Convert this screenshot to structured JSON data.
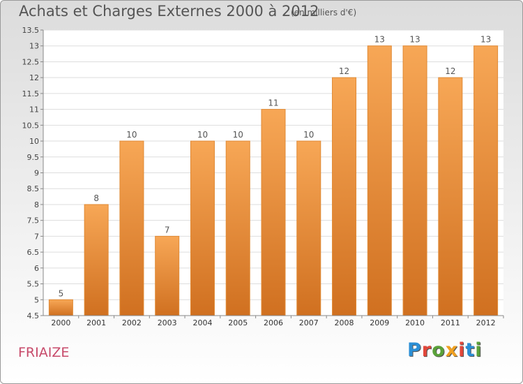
{
  "header": {
    "title": "Achats et Charges Externes 2000 à 2012",
    "unit": "(en milliers d'€)"
  },
  "footer": {
    "commune": "FRIAIZE",
    "logo": "Proxiti"
  },
  "colors": {
    "bar": "#f0902f",
    "bar_light": "#f7a756",
    "bar_dark": "#d07020",
    "logo": [
      "#2a8fd6",
      "#e2473a",
      "#5aa23a",
      "#f0a020",
      "#e2473a",
      "#2a8fd6",
      "#5aa23a"
    ]
  },
  "chart_data": {
    "type": "bar",
    "categories": [
      "2000",
      "2001",
      "2002",
      "2003",
      "2004",
      "2005",
      "2006",
      "2007",
      "2008",
      "2009",
      "2010",
      "2011",
      "2012"
    ],
    "values": [
      5,
      8,
      10,
      7,
      10,
      10,
      11,
      10,
      12,
      13,
      13,
      12,
      13
    ],
    "labels": [
      "5",
      "8",
      "10",
      "7",
      "10",
      "10",
      "11",
      "10",
      "12",
      "13",
      "13",
      "12",
      "13"
    ],
    "yticks": [
      "4.5",
      "5",
      "5.5",
      "6",
      "6.5",
      "7",
      "7.5",
      "8",
      "8.5",
      "9",
      "9.5",
      "10",
      "10.5",
      "11",
      "11.5",
      "12",
      "12.5",
      "13",
      "13.5"
    ],
    "ylim": [
      4.5,
      13.5
    ],
    "grid": true,
    "title": "Achats et Charges Externes 2000 à 2012",
    "xlabel": "",
    "ylabel": ""
  }
}
